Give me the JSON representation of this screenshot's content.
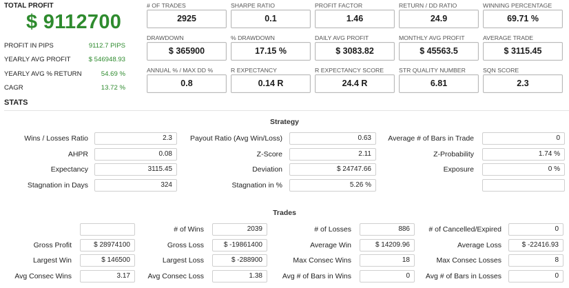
{
  "summary": {
    "total_label": "TOTAL PROFIT",
    "total_value": "$ 9112700",
    "rows": [
      {
        "label": "PROFIT IN PIPS",
        "value": "9112.7 PIPS"
      },
      {
        "label": "YEARLY AVG PROFIT",
        "value": "$ 546948.93"
      },
      {
        "label": "YEARLY AVG % RETURN",
        "value": "54.69 %"
      },
      {
        "label": "CAGR",
        "value": "13.72 %"
      }
    ],
    "value_color": "#2e8b2e"
  },
  "metrics": [
    [
      {
        "label": "# OF TRADES",
        "value": "2925"
      },
      {
        "label": "SHARPE RATIO",
        "value": "0.1"
      },
      {
        "label": "PROFIT FACTOR",
        "value": "1.46"
      },
      {
        "label": "RETURN / DD RATIO",
        "value": "24.9"
      },
      {
        "label": "WINNING PERCENTAGE",
        "value": "69.71 %"
      }
    ],
    [
      {
        "label": "DRAWDOWN",
        "value": "$ 365900"
      },
      {
        "label": "% DRAWDOWN",
        "value": "17.15 %"
      },
      {
        "label": "DAILY AVG PROFIT",
        "value": "$ 3083.82"
      },
      {
        "label": "MONTHLY AVG PROFIT",
        "value": "$ 45563.5"
      },
      {
        "label": "AVERAGE TRADE",
        "value": "$ 3115.45"
      }
    ],
    [
      {
        "label": "ANNUAL % / MAX DD %",
        "value": "0.8"
      },
      {
        "label": "R EXPECTANCY",
        "value": "0.14 R"
      },
      {
        "label": "R EXPECTANCY SCORE",
        "value": "24.4 R"
      },
      {
        "label": "STR QUALITY NUMBER",
        "value": "6.81"
      },
      {
        "label": "SQN SCORE",
        "value": "2.3"
      }
    ]
  ],
  "stats_title": "STATS",
  "strategy": {
    "title": "Strategy",
    "rows": [
      [
        {
          "label": "Wins / Losses Ratio",
          "value": "2.3"
        },
        {
          "label": "Payout Ratio (Avg Win/Loss)",
          "value": "0.63"
        },
        {
          "label": "Average # of Bars in Trade",
          "value": "0"
        }
      ],
      [
        {
          "label": "AHPR",
          "value": "0.08"
        },
        {
          "label": "Z-Score",
          "value": "2.11"
        },
        {
          "label": "Z-Probability",
          "value": "1.74 %"
        }
      ],
      [
        {
          "label": "Expectancy",
          "value": "3115.45"
        },
        {
          "label": "Deviation",
          "value": "$ 24747.66"
        },
        {
          "label": "Exposure",
          "value": "0 %"
        }
      ],
      [
        {
          "label": "Stagnation in Days",
          "value": "324"
        },
        {
          "label": "Stagnation in %",
          "value": "5.26 %"
        },
        {
          "label": "",
          "value": ""
        }
      ]
    ]
  },
  "trades": {
    "title": "Trades",
    "rows": [
      [
        {
          "label": "",
          "value": ""
        },
        {
          "label": "# of Wins",
          "value": "2039"
        },
        {
          "label": "# of Losses",
          "value": "886"
        },
        {
          "label": "# of Cancelled/Expired",
          "value": "0"
        }
      ],
      [
        {
          "label": "Gross Profit",
          "value": "$ 28974100"
        },
        {
          "label": "Gross Loss",
          "value": "$ -19861400"
        },
        {
          "label": "Average Win",
          "value": "$ 14209.96"
        },
        {
          "label": "Average Loss",
          "value": "$ -22416.93"
        }
      ],
      [
        {
          "label": "Largest Win",
          "value": "$ 146500"
        },
        {
          "label": "Largest Loss",
          "value": "$ -288900"
        },
        {
          "label": "Max Consec Wins",
          "value": "18"
        },
        {
          "label": "Max Consec Losses",
          "value": "8"
        }
      ],
      [
        {
          "label": "Avg Consec Wins",
          "value": "3.17"
        },
        {
          "label": "Avg Consec Loss",
          "value": "1.38"
        },
        {
          "label": "Avg # of Bars in Wins",
          "value": "0"
        },
        {
          "label": "Avg # of Bars in Losses",
          "value": "0"
        }
      ]
    ]
  }
}
